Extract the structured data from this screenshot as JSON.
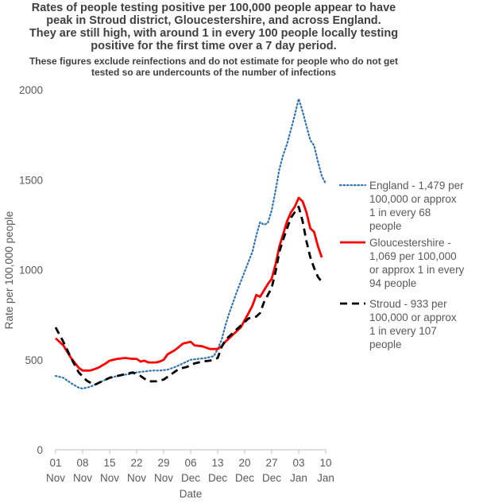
{
  "title_lines": [
    "Rates of people testing positive per 100,000 people appear to have",
    "peak in Stroud district, Gloucestershire, and across England.",
    "They are still high, with around 1 in every 100 people locally testing",
    "positive for the first time over a 7 day period."
  ],
  "subtitle_lines": [
    "These figures exclude reinfections and do not estimate for people who do not get",
    "tested so are undercounts of the number of infections"
  ],
  "chart_data": {
    "type": "line",
    "title": "Rates of people testing positive per 100,000 people appear to have peak in Stroud district, Gloucestershire, and across England. They are still high, with around 1 in every 100 people locally testing positive for the first time over a 7 day period.",
    "subtitle": "These figures exclude reinfections and do not estimate for people who do not get tested so are undercounts of the number of infections",
    "xlabel": "Date",
    "ylabel": "Rate per 100,000 people",
    "ylim": [
      0,
      2000
    ],
    "yticks": [
      0,
      500,
      1000,
      1500,
      2000
    ],
    "xlim": [
      0,
      70
    ],
    "xticks": [
      {
        "x": 0,
        "line1": "01",
        "line2": "Nov"
      },
      {
        "x": 7,
        "line1": "08",
        "line2": "Nov"
      },
      {
        "x": 14,
        "line1": "15",
        "line2": "Nov"
      },
      {
        "x": 21,
        "line1": "22",
        "line2": "Nov"
      },
      {
        "x": 28,
        "line1": "29",
        "line2": "Nov"
      },
      {
        "x": 35,
        "line1": "06",
        "line2": "Dec"
      },
      {
        "x": 42,
        "line1": "13",
        "line2": "Dec"
      },
      {
        "x": 49,
        "line1": "20",
        "line2": "Dec"
      },
      {
        "x": 56,
        "line1": "27",
        "line2": "Dec"
      },
      {
        "x": 63,
        "line1": "03",
        "line2": "Jan"
      },
      {
        "x": 70,
        "line1": "10",
        "line2": "Jan"
      }
    ],
    "grid": false,
    "legend_position": "right",
    "series": [
      {
        "name": "England - 1,479 per 100,000 or approx 1 in every 68 people",
        "legend_lines": [
          "England - 1,479 per",
          "100,000 or approx",
          "1 in every 68",
          "people"
        ],
        "color": "#2E75B6",
        "style": "dotted",
        "points": [
          [
            0,
            410
          ],
          [
            2,
            400
          ],
          [
            4,
            370
          ],
          [
            6,
            345
          ],
          [
            7,
            340
          ],
          [
            9,
            350
          ],
          [
            11,
            370
          ],
          [
            13,
            390
          ],
          [
            15,
            405
          ],
          [
            17,
            415
          ],
          [
            19,
            420
          ],
          [
            21,
            430
          ],
          [
            23,
            435
          ],
          [
            25,
            440
          ],
          [
            27,
            440
          ],
          [
            29,
            445
          ],
          [
            31,
            460
          ],
          [
            33,
            480
          ],
          [
            35,
            500
          ],
          [
            37,
            505
          ],
          [
            39,
            510
          ],
          [
            41,
            520
          ],
          [
            42,
            560
          ],
          [
            43,
            610
          ],
          [
            44,
            690
          ],
          [
            45,
            760
          ],
          [
            47,
            880
          ],
          [
            49,
            990
          ],
          [
            51,
            1100
          ],
          [
            52,
            1190
          ],
          [
            53,
            1265
          ],
          [
            54,
            1250
          ],
          [
            55,
            1260
          ],
          [
            56,
            1330
          ],
          [
            57,
            1440
          ],
          [
            58,
            1560
          ],
          [
            59,
            1640
          ],
          [
            60,
            1700
          ],
          [
            61,
            1780
          ],
          [
            62,
            1860
          ],
          [
            63,
            1950
          ],
          [
            64,
            1880
          ],
          [
            65,
            1800
          ],
          [
            66,
            1720
          ],
          [
            67,
            1690
          ],
          [
            68,
            1600
          ],
          [
            69,
            1520
          ],
          [
            70,
            1479
          ]
        ]
      },
      {
        "name": "Gloucestershire - 1,069 per 100,000 or approx 1 in every 94 people",
        "legend_lines": [
          "Gloucestershire -",
          "1,069 per 100,000",
          "or approx 1 in every",
          "94 people"
        ],
        "color": "#FF0000",
        "style": "solid",
        "points": [
          [
            0,
            620
          ],
          [
            2,
            580
          ],
          [
            4,
            510
          ],
          [
            6,
            455
          ],
          [
            7,
            440
          ],
          [
            9,
            440
          ],
          [
            11,
            455
          ],
          [
            13,
            480
          ],
          [
            14,
            495
          ],
          [
            16,
            505
          ],
          [
            18,
            510
          ],
          [
            20,
            505
          ],
          [
            21,
            505
          ],
          [
            22,
            490
          ],
          [
            23,
            495
          ],
          [
            24,
            485
          ],
          [
            26,
            485
          ],
          [
            27,
            490
          ],
          [
            28,
            500
          ],
          [
            29,
            530
          ],
          [
            31,
            555
          ],
          [
            33,
            590
          ],
          [
            35,
            600
          ],
          [
            36,
            580
          ],
          [
            38,
            575
          ],
          [
            40,
            560
          ],
          [
            42,
            560
          ],
          [
            43,
            575
          ],
          [
            44,
            600
          ],
          [
            46,
            640
          ],
          [
            48,
            680
          ],
          [
            50,
            760
          ],
          [
            51,
            800
          ],
          [
            52,
            860
          ],
          [
            53,
            850
          ],
          [
            55,
            920
          ],
          [
            56,
            950
          ],
          [
            57,
            1030
          ],
          [
            58,
            1130
          ],
          [
            59,
            1200
          ],
          [
            60,
            1270
          ],
          [
            61,
            1320
          ],
          [
            62,
            1350
          ],
          [
            63,
            1400
          ],
          [
            64,
            1380
          ],
          [
            65,
            1320
          ],
          [
            66,
            1230
          ],
          [
            67,
            1210
          ],
          [
            68,
            1130
          ],
          [
            69,
            1069
          ]
        ]
      },
      {
        "name": "Stroud - 933 per 100,000 or approx 1 in every 107 people",
        "legend_lines": [
          "Stroud - 933 per",
          "100,000 or approx",
          "1 in every 107",
          "people"
        ],
        "color": "#000000",
        "style": "dashed",
        "points": [
          [
            0,
            680
          ],
          [
            2,
            600
          ],
          [
            4,
            510
          ],
          [
            6,
            430
          ],
          [
            8,
            385
          ],
          [
            10,
            360
          ],
          [
            12,
            380
          ],
          [
            14,
            400
          ],
          [
            16,
            410
          ],
          [
            18,
            420
          ],
          [
            20,
            430
          ],
          [
            22,
            410
          ],
          [
            24,
            380
          ],
          [
            26,
            380
          ],
          [
            28,
            390
          ],
          [
            30,
            420
          ],
          [
            32,
            450
          ],
          [
            34,
            460
          ],
          [
            36,
            480
          ],
          [
            38,
            490
          ],
          [
            40,
            495
          ],
          [
            42,
            510
          ],
          [
            43,
            570
          ],
          [
            44,
            610
          ],
          [
            46,
            650
          ],
          [
            48,
            690
          ],
          [
            50,
            730
          ],
          [
            52,
            740
          ],
          [
            53,
            760
          ],
          [
            54,
            820
          ],
          [
            56,
            900
          ],
          [
            57,
            990
          ],
          [
            58,
            1100
          ],
          [
            59,
            1170
          ],
          [
            60,
            1230
          ],
          [
            61,
            1290
          ],
          [
            62,
            1320
          ],
          [
            63,
            1350
          ],
          [
            64,
            1270
          ],
          [
            65,
            1160
          ],
          [
            66,
            1070
          ],
          [
            67,
            1010
          ],
          [
            68,
            960
          ],
          [
            69,
            933
          ]
        ]
      }
    ]
  }
}
